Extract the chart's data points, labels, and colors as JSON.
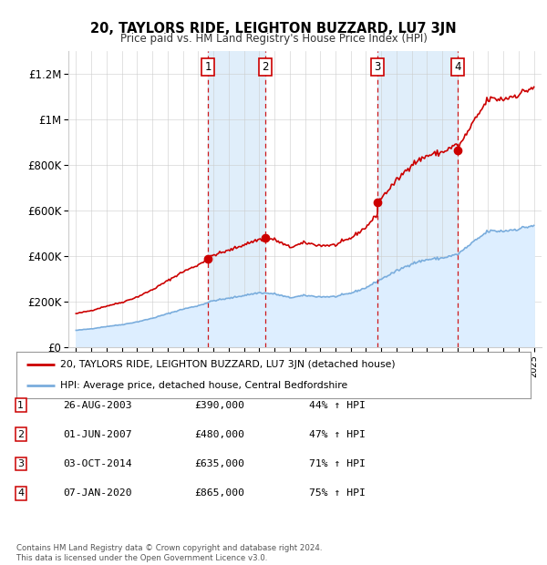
{
  "title": "20, TAYLORS RIDE, LEIGHTON BUZZARD, LU7 3JN",
  "subtitle": "Price paid vs. HM Land Registry's House Price Index (HPI)",
  "background_color": "#ffffff",
  "plot_bg_color": "#ffffff",
  "grid_color": "#cccccc",
  "hpi_fill_color": "#ddeeff",
  "sale_line_color": "#cc0000",
  "hpi_line_color": "#7aaddd",
  "vertical_line_color": "#cc0000",
  "band_color": "#e0eefa",
  "sale_transactions": [
    {
      "year_f": 2003.65,
      "price": 390000,
      "label": "1",
      "hpi_index": 163000
    },
    {
      "year_f": 2007.41,
      "price": 480000,
      "label": "2",
      "hpi_index": 225000
    },
    {
      "year_f": 2014.75,
      "price": 635000,
      "label": "3",
      "hpi_index": 258000
    },
    {
      "year_f": 2020.02,
      "price": 865000,
      "label": "4",
      "hpi_index": 400000
    }
  ],
  "xlim": [
    1994.5,
    2025.5
  ],
  "ylim": [
    0,
    1300000
  ],
  "yticks": [
    0,
    200000,
    400000,
    600000,
    800000,
    1000000,
    1200000
  ],
  "ytick_labels": [
    "£0",
    "£200K",
    "£400K",
    "£600K",
    "£800K",
    "£1M",
    "£1.2M"
  ],
  "xtick_years": [
    1995,
    1996,
    1997,
    1998,
    1999,
    2000,
    2001,
    2002,
    2003,
    2004,
    2005,
    2006,
    2007,
    2008,
    2009,
    2010,
    2011,
    2012,
    2013,
    2014,
    2015,
    2016,
    2017,
    2018,
    2019,
    2020,
    2021,
    2022,
    2023,
    2024,
    2025
  ],
  "legend_sale_label": "20, TAYLORS RIDE, LEIGHTON BUZZARD, LU7 3JN (detached house)",
  "legend_hpi_label": "HPI: Average price, detached house, Central Bedfordshire",
  "footer_text": "Contains HM Land Registry data © Crown copyright and database right 2024.\nThis data is licensed under the Open Government Licence v3.0.",
  "table_rows": [
    {
      "num": "1",
      "date": "26-AUG-2003",
      "price": "£390,000",
      "pct": "44% ↑ HPI"
    },
    {
      "num": "2",
      "date": "01-JUN-2007",
      "price": "£480,000",
      "pct": "47% ↑ HPI"
    },
    {
      "num": "3",
      "date": "03-OCT-2014",
      "price": "£635,000",
      "pct": "71% ↑ HPI"
    },
    {
      "num": "4",
      "date": "07-JAN-2020",
      "price": "£865,000",
      "pct": "75% ↑ HPI"
    }
  ]
}
